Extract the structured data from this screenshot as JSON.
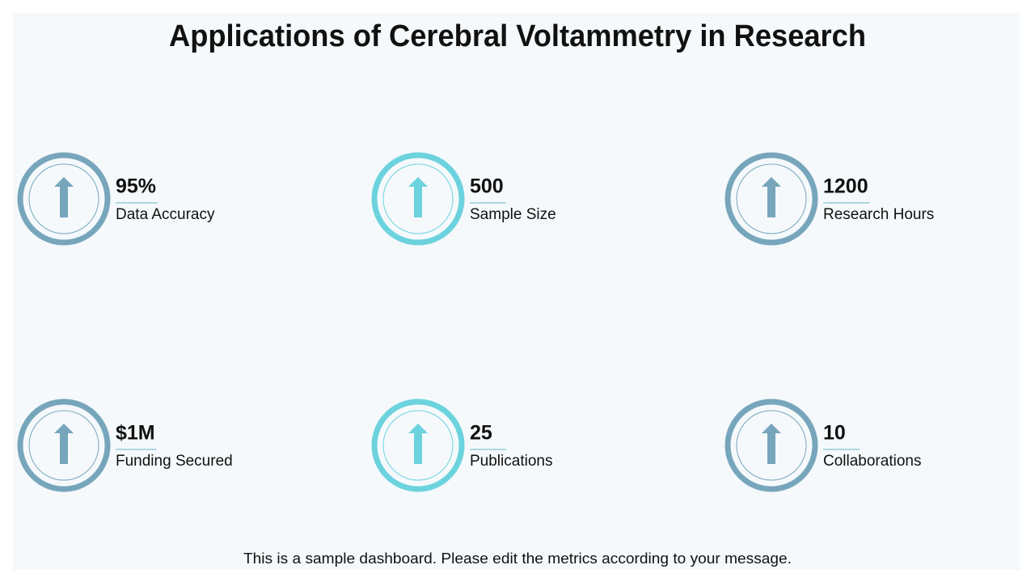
{
  "header": {
    "title": "Applications of Cerebral Voltammetry in Research"
  },
  "metrics": [
    {
      "value": "95%",
      "label": "Data Accuracy"
    },
    {
      "value": "500",
      "label": "Sample Size"
    },
    {
      "value": "1200",
      "label": "Research Hours"
    },
    {
      "value": "$1M",
      "label": "Funding Secured"
    },
    {
      "value": "25",
      "label": "Publications"
    },
    {
      "value": "10",
      "label": "Collaborations"
    }
  ],
  "footer": {
    "text": "This is a sample dashboard. Please edit the metrics according to your message."
  }
}
